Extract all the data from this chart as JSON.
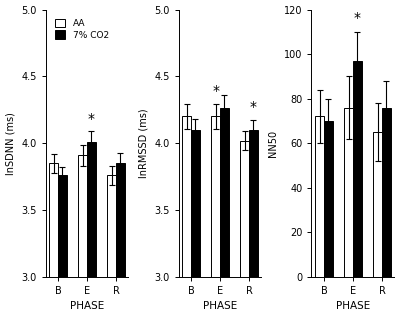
{
  "panels": [
    {
      "ylabel": "lnSDNN (ms)",
      "ylim": [
        3.0,
        5.0
      ],
      "yticks": [
        3.0,
        3.5,
        4.0,
        4.5,
        5.0
      ],
      "aa_vals": [
        3.85,
        3.91,
        3.76
      ],
      "co2_vals": [
        3.76,
        4.01,
        3.85
      ],
      "aa_err": [
        0.07,
        0.08,
        0.07
      ],
      "co2_err": [
        0.06,
        0.08,
        0.08
      ],
      "star_positions": [
        {
          "group": 1,
          "bar": 1,
          "y": 4.13
        }
      ],
      "ybase": 3.0
    },
    {
      "ylabel": "lnRMSSD (ms)",
      "ylim": [
        3.0,
        5.0
      ],
      "yticks": [
        3.0,
        3.5,
        4.0,
        4.5,
        5.0
      ],
      "aa_vals": [
        4.2,
        4.2,
        4.02
      ],
      "co2_vals": [
        4.1,
        4.26,
        4.1
      ],
      "aa_err": [
        0.09,
        0.09,
        0.07
      ],
      "co2_err": [
        0.08,
        0.1,
        0.07
      ],
      "star_positions": [
        {
          "group": 1,
          "bar": 0,
          "y": 4.34
        },
        {
          "group": 2,
          "bar": 1,
          "y": 4.22
        }
      ],
      "ybase": 3.0
    },
    {
      "ylabel": "NN50",
      "ylim": [
        0,
        120
      ],
      "yticks": [
        0,
        20,
        40,
        60,
        80,
        100,
        120
      ],
      "aa_vals": [
        72,
        76,
        65
      ],
      "co2_vals": [
        70,
        97,
        76
      ],
      "aa_err": [
        12,
        14,
        13
      ],
      "co2_err": [
        10,
        13,
        12
      ],
      "star_positions": [
        {
          "group": 1,
          "bar": 1,
          "y": 113
        }
      ],
      "ybase": 0
    }
  ],
  "categories": [
    "B",
    "E",
    "R"
  ],
  "xlabel": "PHASE",
  "legend_labels": [
    "AA",
    "7% CO2"
  ],
  "bar_width": 0.3,
  "aa_color": "white",
  "co2_color": "black",
  "edge_color": "black",
  "background_color": "white",
  "fig_facecolor": "white"
}
